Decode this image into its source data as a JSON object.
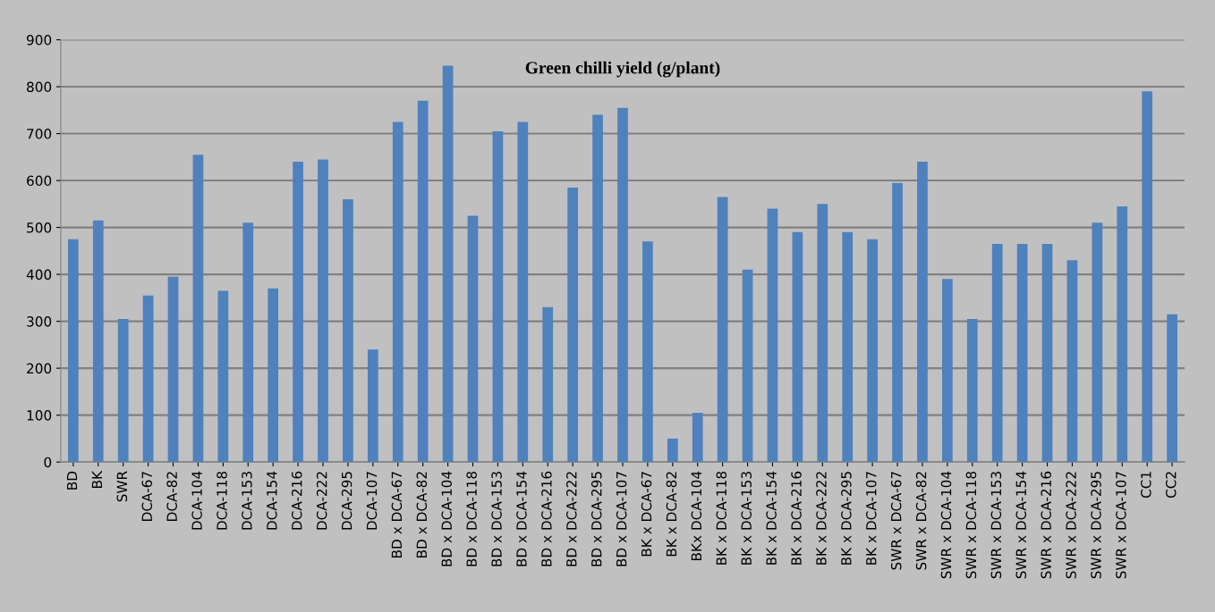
{
  "chart_data": {
    "type": "bar",
    "title": "Green chilli yield (g/plant)",
    "categories": [
      "BD",
      "BK",
      "SWR",
      "DCA-67",
      "DCA-82",
      "DCA-104",
      "DCA-118",
      "DCA-153",
      "DCA-154",
      "DCA-216",
      "DCA-222",
      "DCA-295",
      "DCA-107",
      "BD x DCA-67",
      "BD x DCA-82",
      "BD x DCA-104",
      "BD x DCA-118",
      "BD x DCA-153",
      "BD x DCA-154",
      "BD x DCA-216",
      "BD x DCA-222",
      "BD x DCA-295",
      "BD x DCA-107",
      "BK x DCA-67",
      "BK x DCA-82",
      "BKx DCA-104",
      "BK x DCA-118",
      "BK x DCA-153",
      "BK x DCA-154",
      "BK x DCA-216",
      "BK x DCA-222",
      "BK x DCA-295",
      "BK x DCA-107",
      "SWR x DCA-67",
      "SWR x DCA-82",
      "SWR x DCA-104",
      "SWR x DCA-118",
      "SWR x DCA-153",
      "SWR x DCA-154",
      "SWR x DCA-216",
      "SWR x DCA-222",
      "SWR x DCA-295",
      "SWR x DCA-107",
      "CC1",
      "CC2"
    ],
    "values": [
      475,
      515,
      305,
      355,
      395,
      655,
      365,
      510,
      370,
      640,
      645,
      560,
      240,
      725,
      770,
      845,
      525,
      705,
      725,
      330,
      585,
      740,
      755,
      470,
      50,
      105,
      565,
      410,
      540,
      490,
      550,
      490,
      475,
      595,
      640,
      390,
      305,
      465,
      465,
      465,
      430,
      510,
      545,
      790,
      315
    ],
    "color": "#4f81bd",
    "ylim": [
      0,
      900
    ],
    "yticks": [
      0,
      100,
      200,
      300,
      400,
      500,
      600,
      700,
      800,
      900
    ],
    "grid": "y"
  }
}
